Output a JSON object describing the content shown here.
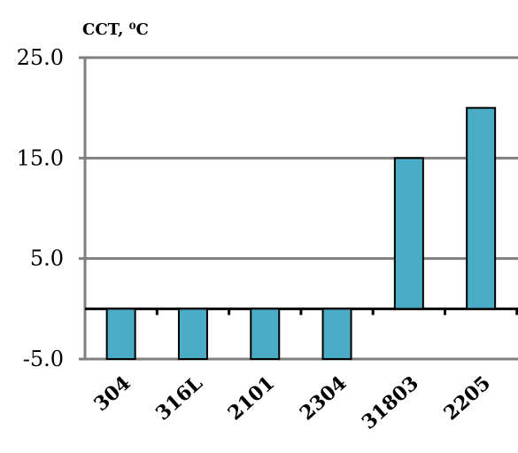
{
  "chart_data": {
    "type": "bar",
    "title": "",
    "xlabel": "",
    "ylabel": "CCT, ⁰C",
    "ylim": [
      -5,
      25
    ],
    "yticks": [
      -5.0,
      5.0,
      15.0,
      25.0
    ],
    "ytick_labels": [
      "-5.0",
      "5.0",
      "15.0",
      "25.0"
    ],
    "grid": true,
    "legend": "none",
    "categories": [
      "304",
      "316L",
      "2101",
      "2304",
      "31803",
      "2205"
    ],
    "values": [
      -5,
      -5,
      -5,
      -5,
      15,
      20
    ],
    "bar_color": "#4bacc6",
    "grid_color": "#7f7f7f"
  }
}
